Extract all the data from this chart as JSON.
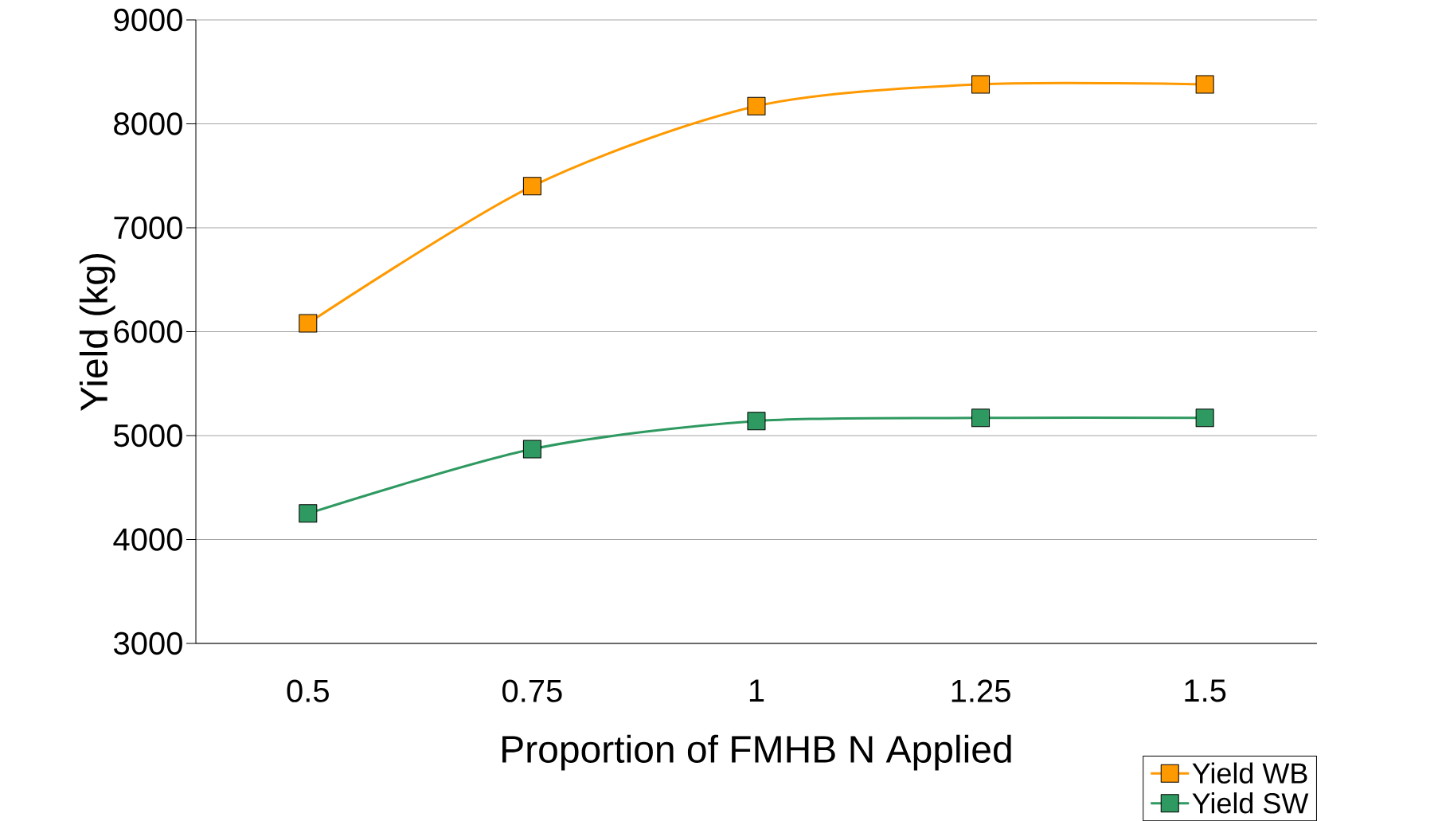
{
  "chart_data": {
    "type": "line",
    "xlabel": "Proportion of FMHB N Applied",
    "ylabel": "Yield (kg)",
    "categories": [
      "0.5",
      "0.75",
      "1",
      "1.25",
      "1.5"
    ],
    "series": [
      {
        "name": "Yield WB",
        "color": "#ff9900",
        "values": [
          6080,
          7400,
          8170,
          8380,
          8380
        ]
      },
      {
        "name": "Yield SW",
        "color": "#2e9960",
        "values": [
          4250,
          4870,
          5140,
          5170,
          5170
        ]
      }
    ],
    "ylim": [
      3000,
      9000
    ],
    "yticks": [
      3000,
      4000,
      5000,
      6000,
      7000,
      8000,
      9000
    ],
    "grid": "y",
    "legend": "bottom right",
    "marker": "square",
    "line_style": "solid"
  }
}
